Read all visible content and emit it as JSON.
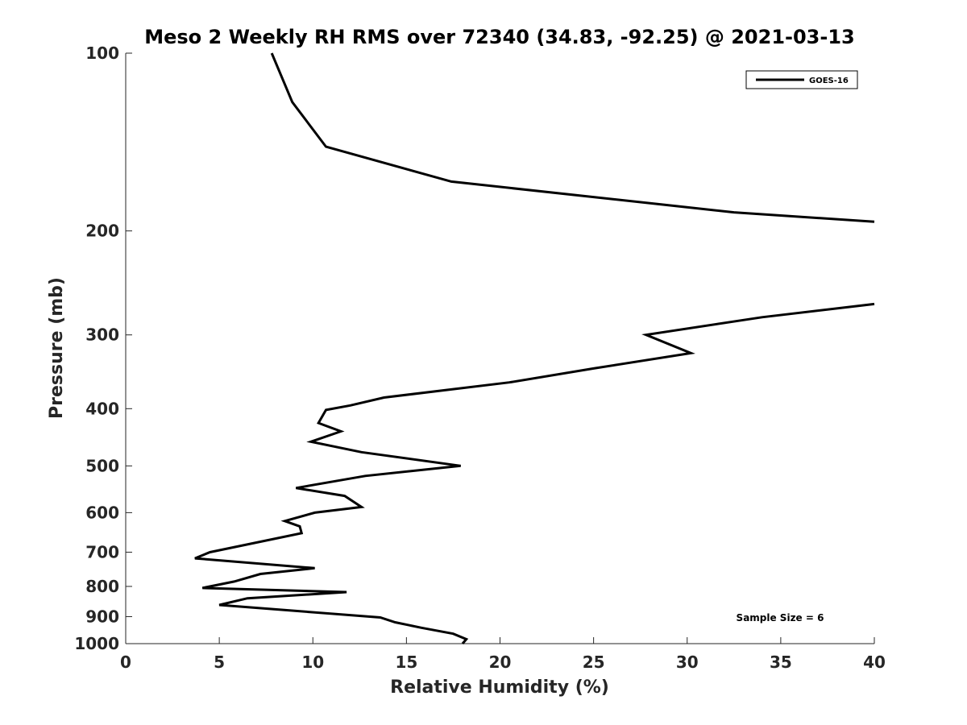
{
  "chart_data": {
    "type": "line",
    "title": "Meso 2 Weekly RH RMS over 72340 (34.83, -92.25) @ 2021-03-13",
    "xlabel": "Relative Humidity (%)",
    "ylabel": "Pressure (mb)",
    "xlim": [
      0,
      40
    ],
    "ylim": [
      100,
      1000
    ],
    "yscale": "log",
    "yreversed": true,
    "grid": false,
    "legend_position": "top-right",
    "xticks": [
      0,
      5,
      10,
      15,
      20,
      25,
      30,
      35,
      40
    ],
    "xtick_labels": [
      "0",
      "5",
      "10",
      "15",
      "20",
      "25",
      "30",
      "35",
      "40"
    ],
    "yticks": [
      100,
      200,
      300,
      400,
      500,
      600,
      700,
      800,
      900,
      1000
    ],
    "ytick_labels": [
      "100",
      "200",
      "300",
      "400",
      "500",
      "600",
      "700",
      "800",
      "900",
      "1000"
    ],
    "annotation": "Sample Size = 6",
    "series": [
      {
        "name": "GOES-16",
        "color": "#000000",
        "segments": [
          [
            {
              "x": 7.8,
              "y": 100
            },
            {
              "x": 8.9,
              "y": 121
            },
            {
              "x": 10.7,
              "y": 144
            },
            {
              "x": 17.4,
              "y": 165
            },
            {
              "x": 32.5,
              "y": 186
            },
            {
              "x": 40.0,
              "y": 193
            }
          ],
          [
            {
              "x": 40.0,
              "y": 266
            },
            {
              "x": 34.0,
              "y": 280
            },
            {
              "x": 27.8,
              "y": 300
            },
            {
              "x": 30.2,
              "y": 322
            },
            {
              "x": 25.0,
              "y": 342
            },
            {
              "x": 20.5,
              "y": 361
            },
            {
              "x": 13.8,
              "y": 383
            },
            {
              "x": 12.0,
              "y": 395
            },
            {
              "x": 10.7,
              "y": 402
            },
            {
              "x": 10.3,
              "y": 423
            },
            {
              "x": 11.5,
              "y": 437
            },
            {
              "x": 9.9,
              "y": 455
            },
            {
              "x": 12.6,
              "y": 474
            },
            {
              "x": 17.9,
              "y": 500
            },
            {
              "x": 12.8,
              "y": 520
            },
            {
              "x": 9.1,
              "y": 545
            },
            {
              "x": 11.7,
              "y": 562
            },
            {
              "x": 12.6,
              "y": 587
            },
            {
              "x": 10.1,
              "y": 600
            },
            {
              "x": 8.5,
              "y": 620
            },
            {
              "x": 9.3,
              "y": 633
            },
            {
              "x": 9.4,
              "y": 650
            },
            {
              "x": 4.5,
              "y": 700
            },
            {
              "x": 3.7,
              "y": 717
            },
            {
              "x": 10.1,
              "y": 745
            },
            {
              "x": 7.2,
              "y": 762
            },
            {
              "x": 5.8,
              "y": 785
            },
            {
              "x": 4.1,
              "y": 805
            },
            {
              "x": 11.8,
              "y": 818
            },
            {
              "x": 6.5,
              "y": 838
            },
            {
              "x": 5.0,
              "y": 860
            },
            {
              "x": 13.6,
              "y": 903
            },
            {
              "x": 14.4,
              "y": 920
            },
            {
              "x": 15.8,
              "y": 940
            },
            {
              "x": 17.5,
              "y": 962
            },
            {
              "x": 18.2,
              "y": 983
            },
            {
              "x": 18.0,
              "y": 1000
            }
          ]
        ]
      }
    ]
  }
}
